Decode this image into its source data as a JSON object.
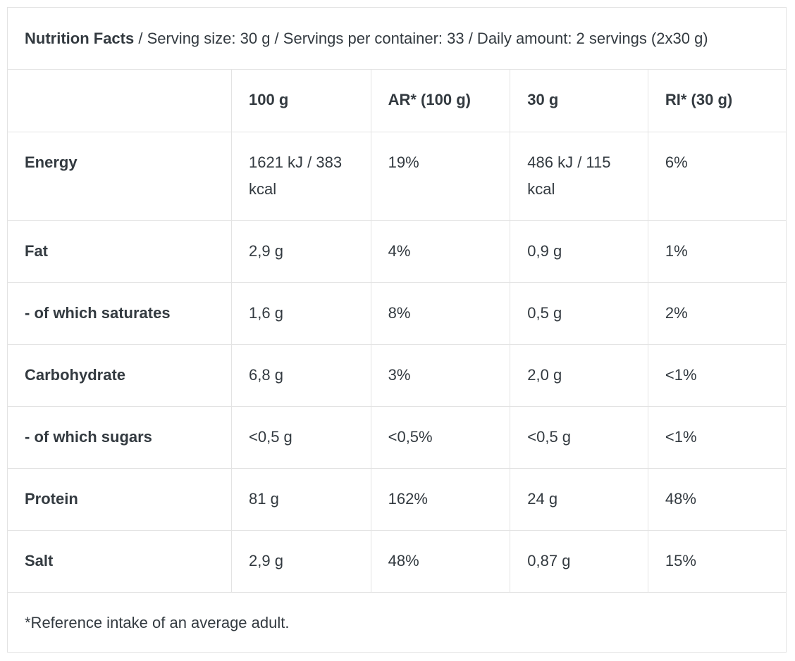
{
  "header": {
    "title": "Nutrition Facts",
    "details": " / Serving size: 30 g / Servings per container: 33 / Daily amount: 2 servings (2x30 g)"
  },
  "table": {
    "columns": [
      "",
      "100 g",
      "AR* (100 g)",
      "30 g",
      "RI* (30 g)"
    ],
    "rows": [
      {
        "label": "Energy",
        "per100": "1621 kJ / 383 kcal",
        "ar100": "19%",
        "per30": "486 kJ / 115 kcal",
        "ri30": "6%"
      },
      {
        "label": "Fat",
        "per100": "2,9 g",
        "ar100": "4%",
        "per30": "0,9 g",
        "ri30": "1%"
      },
      {
        "label": "- of which saturates",
        "per100": "1,6 g",
        "ar100": "8%",
        "per30": "0,5 g",
        "ri30": "2%"
      },
      {
        "label": "Carbohydrate",
        "per100": "6,8 g",
        "ar100": "3%",
        "per30": "2,0 g",
        "ri30": "<1%"
      },
      {
        "label": "- of which sugars",
        "per100": "<0,5 g",
        "ar100": "<0,5%",
        "per30": "<0,5 g",
        "ri30": "<1%"
      },
      {
        "label": "Protein",
        "per100": "81 g",
        "ar100": "162%",
        "per30": "24 g",
        "ri30": "48%"
      },
      {
        "label": "Salt",
        "per100": "2,9 g",
        "ar100": "48%",
        "per30": "0,87 g",
        "ri30": "15%"
      }
    ]
  },
  "footnote": "*Reference intake of an average adult."
}
